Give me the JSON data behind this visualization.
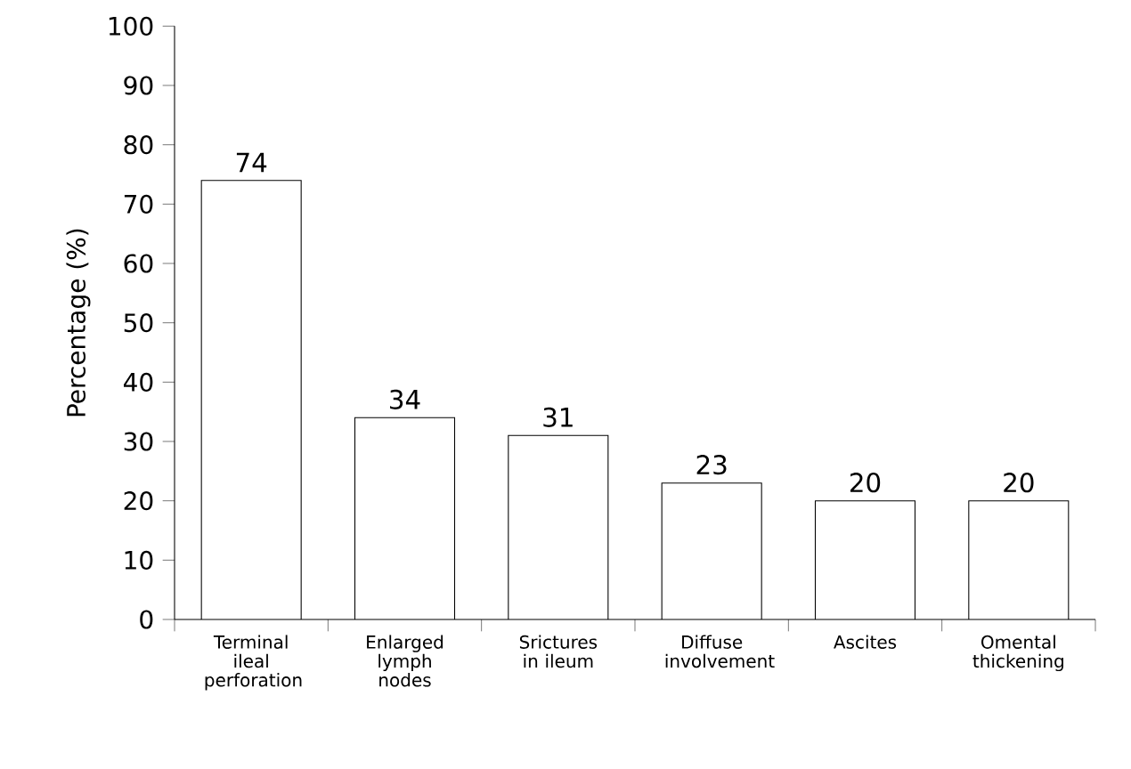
{
  "chart_data": {
    "type": "bar",
    "ylabel": "Percentage (%)",
    "categories": [
      "Terminal ileal perforation",
      "Enlarged lymph nodes",
      "Srictures in ileum",
      "Diffuse involvement",
      "Ascites",
      "Omental thickening"
    ],
    "values": [
      74,
      34,
      31,
      23,
      20,
      20
    ],
    "color": "#ffffff",
    "ylim": [
      0,
      100
    ],
    "yticks": [
      0,
      10,
      20,
      30,
      40,
      50,
      60,
      70,
      80,
      90,
      100
    ],
    "data_labels": true
  }
}
